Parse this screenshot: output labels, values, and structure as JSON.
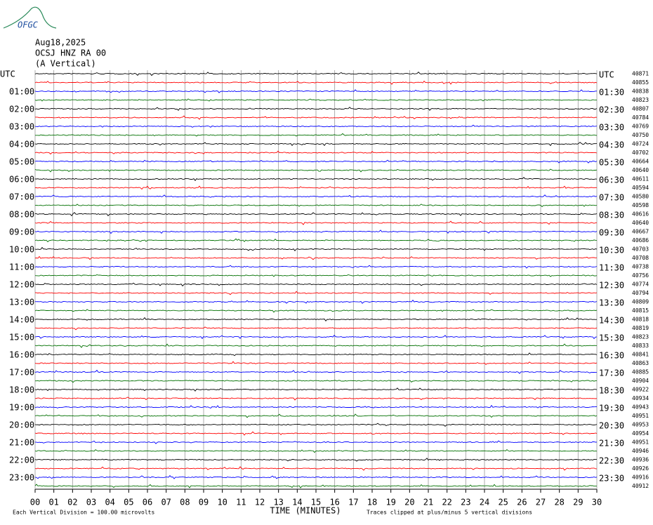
{
  "header": {
    "logo": "OFGC",
    "date": "Aug18,2025",
    "station": "OCSJ HNZ RA 00",
    "component": "(A Vertical)"
  },
  "left_labels": [
    "UTC",
    "01:00",
    "02:00",
    "03:00",
    "04:00",
    "05:00",
    "06:00",
    "07:00",
    "08:00",
    "09:00",
    "10:00",
    "11:00",
    "12:00",
    "13:00",
    "14:00",
    "15:00",
    "16:00",
    "17:00",
    "18:00",
    "19:00",
    "20:00",
    "21:00",
    "22:00",
    "23:00"
  ],
  "right_labels": [
    "UTC",
    "01:30",
    "02:30",
    "03:30",
    "04:30",
    "05:30",
    "06:30",
    "07:30",
    "08:30",
    "09:30",
    "10:30",
    "11:30",
    "12:30",
    "13:30",
    "14:30",
    "15:30",
    "16:30",
    "17:30",
    "18:30",
    "19:30",
    "20:30",
    "21:30",
    "22:30",
    "23:30"
  ],
  "trace_offsets": [
    "40871",
    "40855",
    "40838",
    "40823",
    "40807",
    "40784",
    "40769",
    "40750",
    "40724",
    "40702",
    "40664",
    "40640",
    "40611",
    "40594",
    "40580",
    "40598",
    "40616",
    "40640",
    "40667",
    "40686",
    "40703",
    "40708",
    "40738",
    "40756",
    "40774",
    "40794",
    "40809",
    "40815",
    "40818",
    "40819",
    "40823",
    "40833",
    "40841",
    "40863",
    "40885",
    "40904",
    "40922",
    "40934",
    "40943",
    "40951",
    "40953",
    "40954",
    "40951",
    "40946",
    "40936",
    "40926",
    "40916",
    "40912"
  ],
  "x_ticks": [
    "00",
    "01",
    "02",
    "03",
    "04",
    "05",
    "06",
    "07",
    "08",
    "09",
    "10",
    "11",
    "12",
    "13",
    "14",
    "15",
    "16",
    "17",
    "18",
    "19",
    "20",
    "21",
    "22",
    "23",
    "24",
    "25",
    "26",
    "27",
    "28",
    "29",
    "30"
  ],
  "x_label": "TIME (MINUTES)",
  "note_left": "Each Vertical Division =  100.00 microvolts",
  "note_right": "Traces clipped at plus/minus 5 vertical divisions",
  "trace_colors": [
    "#000000",
    "#ff0000",
    "#0000ff",
    "#007000"
  ]
}
